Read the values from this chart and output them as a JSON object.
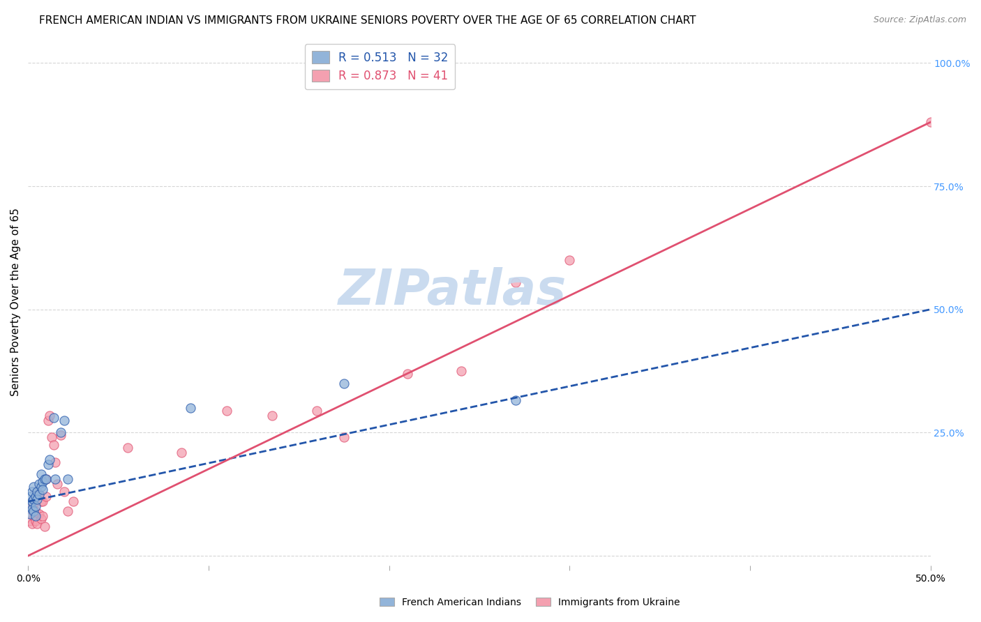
{
  "title": "FRENCH AMERICAN INDIAN VS IMMIGRANTS FROM UKRAINE SENIORS POVERTY OVER THE AGE OF 65 CORRELATION CHART",
  "source": "Source: ZipAtlas.com",
  "ylabel": "Seniors Poverty Over the Age of 65",
  "xlim": [
    0.0,
    0.5
  ],
  "ylim": [
    -0.02,
    1.05
  ],
  "xticks": [
    0.0,
    0.1,
    0.2,
    0.3,
    0.4,
    0.5
  ],
  "yticks": [
    0.0,
    0.25,
    0.5,
    0.75,
    1.0
  ],
  "ytick_labels_right": [
    "",
    "25.0%",
    "50.0%",
    "75.0%",
    "100.0%"
  ],
  "blue_color": "#92B4D9",
  "pink_color": "#F4A0B0",
  "blue_line_color": "#2255AA",
  "pink_line_color": "#E05070",
  "blue_line_style": "--",
  "pink_line_style": "-",
  "watermark": "ZIPatlas",
  "watermark_color": "#C5D8EE",
  "blue_scatter_x": [
    0.001,
    0.001,
    0.001,
    0.002,
    0.002,
    0.002,
    0.003,
    0.003,
    0.003,
    0.004,
    0.004,
    0.004,
    0.005,
    0.005,
    0.006,
    0.006,
    0.007,
    0.007,
    0.008,
    0.008,
    0.009,
    0.01,
    0.011,
    0.012,
    0.014,
    0.015,
    0.018,
    0.02,
    0.022,
    0.09,
    0.175,
    0.27
  ],
  "blue_scatter_y": [
    0.085,
    0.1,
    0.12,
    0.095,
    0.11,
    0.13,
    0.09,
    0.115,
    0.14,
    0.1,
    0.12,
    0.08,
    0.13,
    0.115,
    0.125,
    0.145,
    0.14,
    0.165,
    0.15,
    0.135,
    0.155,
    0.155,
    0.185,
    0.195,
    0.28,
    0.155,
    0.25,
    0.275,
    0.155,
    0.3,
    0.35,
    0.315
  ],
  "pink_scatter_x": [
    0.001,
    0.001,
    0.002,
    0.002,
    0.003,
    0.003,
    0.004,
    0.004,
    0.004,
    0.005,
    0.005,
    0.006,
    0.006,
    0.007,
    0.007,
    0.008,
    0.008,
    0.009,
    0.01,
    0.01,
    0.011,
    0.012,
    0.013,
    0.014,
    0.015,
    0.016,
    0.018,
    0.02,
    0.022,
    0.025,
    0.055,
    0.085,
    0.11,
    0.135,
    0.16,
    0.175,
    0.21,
    0.24,
    0.27,
    0.3,
    0.5
  ],
  "pink_scatter_y": [
    0.07,
    0.095,
    0.065,
    0.1,
    0.08,
    0.105,
    0.09,
    0.115,
    0.07,
    0.13,
    0.065,
    0.125,
    0.085,
    0.11,
    0.075,
    0.11,
    0.08,
    0.06,
    0.155,
    0.12,
    0.275,
    0.285,
    0.24,
    0.225,
    0.19,
    0.145,
    0.245,
    0.13,
    0.09,
    0.11,
    0.22,
    0.21,
    0.295,
    0.285,
    0.295,
    0.24,
    0.37,
    0.375,
    0.555,
    0.6,
    0.88
  ],
  "blue_line_x0": 0.0,
  "blue_line_y0": 0.11,
  "blue_line_x1": 0.5,
  "blue_line_y1": 0.5,
  "pink_line_x0": 0.0,
  "pink_line_y0": 0.0,
  "pink_line_x1": 0.5,
  "pink_line_y1": 0.88,
  "legend_label_blue": "R = 0.513   N = 32",
  "legend_label_pink": "R = 0.873   N = 41",
  "footer_blue": "French American Indians",
  "footer_pink": "Immigrants from Ukraine",
  "title_fontsize": 11,
  "axis_label_fontsize": 11,
  "tick_fontsize": 10,
  "right_tick_color": "#4499FF",
  "scatter_size": 90,
  "scatter_alpha": 0.75
}
